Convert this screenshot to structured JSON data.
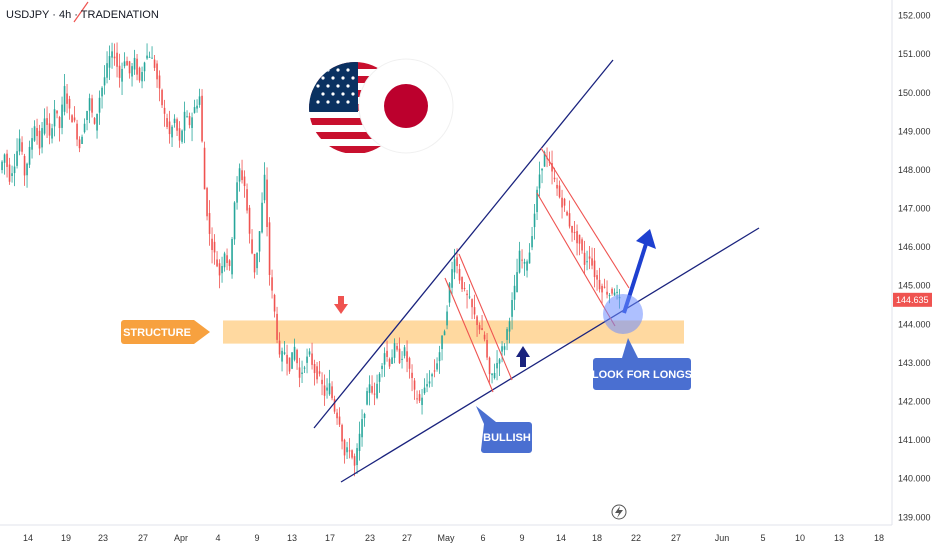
{
  "header": {
    "title": "USDJPY · 4h · TRADENATION"
  },
  "chart_data": {
    "type": "candlestick",
    "symbol": "USDJPY",
    "timeframe": "4h",
    "ylim": [
      138.8,
      152.3
    ],
    "y_ticks": [
      {
        "value": 139,
        "label": "139.000"
      },
      {
        "value": 140,
        "label": "140.000"
      },
      {
        "value": 141,
        "label": "141.000"
      },
      {
        "value": 142,
        "label": "142.000"
      },
      {
        "value": 143,
        "label": "143.000"
      },
      {
        "value": 144,
        "label": "144.000"
      },
      {
        "value": 145,
        "label": "145.000"
      },
      {
        "value": 146,
        "label": "146.000"
      },
      {
        "value": 147,
        "label": "147.000"
      },
      {
        "value": 148,
        "label": "148.000"
      },
      {
        "value": 149,
        "label": "149.000"
      },
      {
        "value": 150,
        "label": "150.000"
      },
      {
        "value": 151,
        "label": "151.000"
      },
      {
        "value": 152,
        "label": "152.000"
      }
    ],
    "x_labels": [
      "14",
      "19",
      "23",
      "27",
      "Apr",
      "4",
      "9",
      "13",
      "17",
      "23",
      "27",
      "May",
      "6",
      "9",
      "14",
      "18",
      "22",
      "27",
      "Jun",
      "5",
      "10",
      "13",
      "18"
    ],
    "last_price": {
      "value": 144.635,
      "label": "144.635",
      "color": "#ef5350"
    },
    "annotations": {
      "structure_label": "STRUCTURE",
      "structure_zone": [
        143.5,
        144.1
      ],
      "bullish_label": "BULLISH",
      "look_for_longs_label": "LOOK FOR LONGS"
    },
    "path_points": [
      [
        0,
        148.0
      ],
      [
        5,
        148.4
      ],
      [
        10,
        147.8
      ],
      [
        15,
        148.2
      ],
      [
        20,
        148.8
      ],
      [
        25,
        147.9
      ],
      [
        30,
        148.5
      ],
      [
        35,
        149.2
      ],
      [
        40,
        148.6
      ],
      [
        45,
        149.4
      ],
      [
        50,
        148.8
      ],
      [
        55,
        149.6
      ],
      [
        60,
        149.1
      ],
      [
        65,
        150.1
      ],
      [
        70,
        149.5
      ],
      [
        75,
        149.2
      ],
      [
        80,
        148.6
      ],
      [
        85,
        149.3
      ],
      [
        90,
        149.8
      ],
      [
        95,
        149.1
      ],
      [
        100,
        149.9
      ],
      [
        105,
        150.4
      ],
      [
        110,
        150.9
      ],
      [
        115,
        151.0
      ],
      [
        120,
        150.4
      ],
      [
        125,
        150.9
      ],
      [
        130,
        150.5
      ],
      [
        135,
        150.8
      ],
      [
        140,
        150.3
      ],
      [
        145,
        150.9
      ],
      [
        150,
        151.0
      ],
      [
        155,
        150.7
      ],
      [
        160,
        150.0
      ],
      [
        165,
        149.4
      ],
      [
        170,
        148.9
      ],
      [
        175,
        149.3
      ],
      [
        180,
        148.7
      ],
      [
        185,
        149.4
      ],
      [
        190,
        149.2
      ],
      [
        195,
        149.6
      ],
      [
        200,
        149.9
      ],
      [
        205,
        147.5
      ],
      [
        210,
        146.3
      ],
      [
        215,
        145.8
      ],
      [
        220,
        145.3
      ],
      [
        225,
        145.9
      ],
      [
        230,
        145.4
      ],
      [
        235,
        147.2
      ],
      [
        240,
        148.0
      ],
      [
        245,
        147.6
      ],
      [
        250,
        146.3
      ],
      [
        255,
        145.4
      ],
      [
        260,
        146.4
      ],
      [
        265,
        147.8
      ],
      [
        270,
        145.3
      ],
      [
        275,
        144.3
      ],
      [
        280,
        143.1
      ],
      [
        285,
        143.3
      ],
      [
        290,
        142.9
      ],
      [
        295,
        143.4
      ],
      [
        300,
        142.6
      ],
      [
        305,
        143.0
      ],
      [
        310,
        143.2
      ],
      [
        315,
        142.8
      ],
      [
        320,
        142.6
      ],
      [
        325,
        142.2
      ],
      [
        330,
        142.4
      ],
      [
        335,
        141.8
      ],
      [
        340,
        141.5
      ],
      [
        345,
        140.6
      ],
      [
        350,
        140.8
      ],
      [
        355,
        140.3
      ],
      [
        360,
        141.1
      ],
      [
        365,
        141.8
      ],
      [
        370,
        142.5
      ],
      [
        375,
        142.1
      ],
      [
        380,
        142.8
      ],
      [
        385,
        143.3
      ],
      [
        390,
        143.0
      ],
      [
        395,
        143.4
      ],
      [
        400,
        143.1
      ],
      [
        405,
        143.3
      ],
      [
        410,
        142.8
      ],
      [
        415,
        142.2
      ],
      [
        420,
        142.0
      ],
      [
        425,
        142.3
      ],
      [
        430,
        142.6
      ],
      [
        435,
        142.8
      ],
      [
        440,
        143.3
      ],
      [
        445,
        143.9
      ],
      [
        450,
        145.0
      ],
      [
        455,
        145.8
      ],
      [
        460,
        145.2
      ],
      [
        465,
        144.8
      ],
      [
        470,
        144.6
      ],
      [
        475,
        144.2
      ],
      [
        480,
        143.9
      ],
      [
        485,
        143.6
      ],
      [
        490,
        142.6
      ],
      [
        495,
        142.8
      ],
      [
        500,
        143.2
      ],
      [
        505,
        143.5
      ],
      [
        510,
        144.2
      ],
      [
        515,
        144.9
      ],
      [
        520,
        145.8
      ],
      [
        525,
        145.5
      ],
      [
        530,
        145.9
      ],
      [
        535,
        146.9
      ],
      [
        540,
        147.9
      ],
      [
        545,
        148.4
      ],
      [
        550,
        148.1
      ],
      [
        555,
        147.7
      ],
      [
        560,
        147.3
      ],
      [
        565,
        147.0
      ],
      [
        570,
        146.6
      ],
      [
        575,
        146.3
      ],
      [
        580,
        146.1
      ],
      [
        585,
        145.6
      ],
      [
        590,
        145.8
      ],
      [
        595,
        145.3
      ],
      [
        600,
        145.0
      ],
      [
        605,
        144.9
      ],
      [
        610,
        144.8
      ],
      [
        615,
        144.9
      ],
      [
        620,
        144.6
      ]
    ]
  }
}
